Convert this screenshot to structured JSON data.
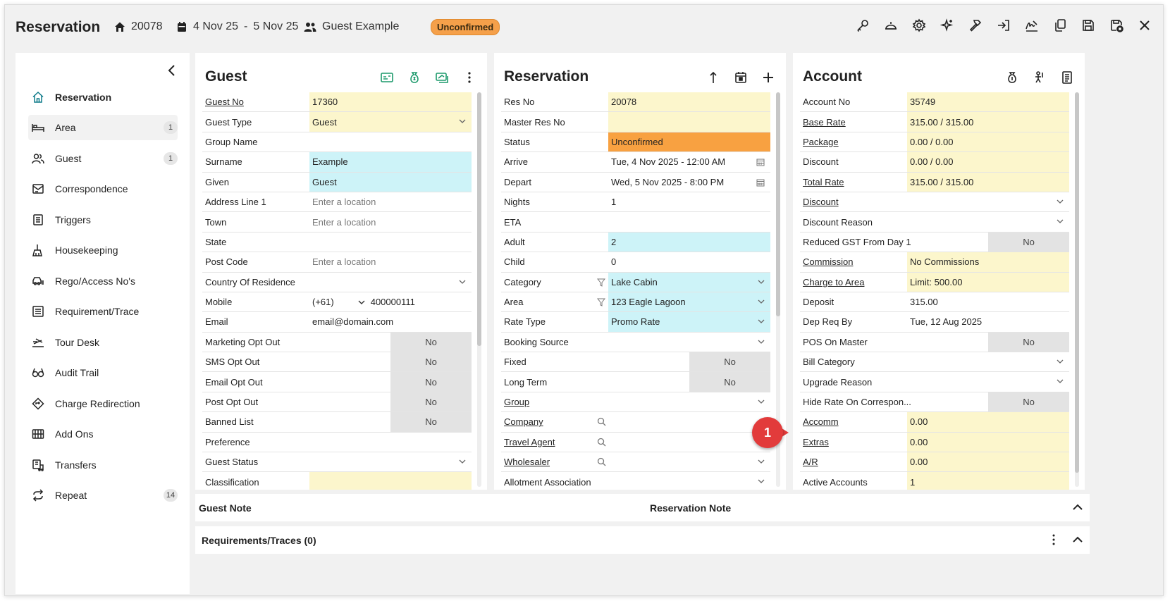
{
  "header": {
    "title": "Reservation",
    "res_no": "20078",
    "date_from": "4 Nov 25",
    "date_sep": "-",
    "date_to": "5 Nov 25",
    "guest_name": "Guest Example",
    "status_badge": "Unconfirmed",
    "toolbar_icons": [
      "key-icon",
      "bell-service-icon",
      "gear-icon",
      "sparkle-icon",
      "hammer-icon",
      "check-in-icon",
      "signature-icon",
      "copy-icon",
      "save-icon",
      "save-close-icon",
      "close-icon"
    ]
  },
  "sidebar": {
    "items": [
      {
        "label": "Reservation",
        "icon": "home-icon",
        "count": ""
      },
      {
        "label": "Area",
        "icon": "bed-icon",
        "count": "1"
      },
      {
        "label": "Guest",
        "icon": "users-icon",
        "count": "1"
      },
      {
        "label": "Correspondence",
        "icon": "correspondence-icon",
        "count": ""
      },
      {
        "label": "Triggers",
        "icon": "triggers-icon",
        "count": ""
      },
      {
        "label": "Housekeeping",
        "icon": "housekeeping-icon",
        "count": ""
      },
      {
        "label": "Rego/Access No's",
        "icon": "car-icon",
        "count": ""
      },
      {
        "label": "Requirement/Trace",
        "icon": "list-icon",
        "count": ""
      },
      {
        "label": "Tour Desk",
        "icon": "tour-icon",
        "count": ""
      },
      {
        "label": "Audit Trail",
        "icon": "glasses-icon",
        "count": ""
      },
      {
        "label": "Charge Redirection",
        "icon": "redirect-icon",
        "count": ""
      },
      {
        "label": "Add Ons",
        "icon": "addons-icon",
        "count": ""
      },
      {
        "label": "Transfers",
        "icon": "transfers-icon",
        "count": ""
      },
      {
        "label": "Repeat",
        "icon": "repeat-icon",
        "count": "14"
      }
    ]
  },
  "guest_panel": {
    "title": "Guest",
    "rows": [
      {
        "label": "Guest No",
        "link": true,
        "value": "17360",
        "bg": "yellow"
      },
      {
        "label": "Guest Type",
        "link": false,
        "value": "Guest",
        "bg": "yellow",
        "dropdown": true
      },
      {
        "label": "Group Name",
        "link": false,
        "value": "",
        "bg": ""
      },
      {
        "label": "Surname",
        "link": false,
        "value": "Example",
        "bg": "cyan"
      },
      {
        "label": "Given",
        "link": false,
        "value": "Guest",
        "bg": "cyan"
      },
      {
        "label": "Address Line 1",
        "link": false,
        "placeholder": "Enter a location",
        "bg": ""
      },
      {
        "label": "Town",
        "link": false,
        "placeholder": "Enter a location",
        "bg": ""
      },
      {
        "label": "State",
        "link": false,
        "value": "",
        "bg": ""
      },
      {
        "label": "Post Code",
        "link": false,
        "placeholder": "Enter a location",
        "bg": ""
      },
      {
        "label": "Country Of Residence",
        "link": false,
        "value": "",
        "bg": "",
        "dropdown": true
      },
      {
        "label": "Mobile",
        "link": false,
        "mobile_code": "(+61)",
        "value": "400000111",
        "bg": ""
      },
      {
        "label": "Email",
        "link": false,
        "value": "email@domain.com",
        "bg": ""
      },
      {
        "label": "Marketing Opt Out",
        "link": false,
        "toggle": "No",
        "bg": ""
      },
      {
        "label": "SMS Opt Out",
        "link": false,
        "toggle": "No",
        "bg": ""
      },
      {
        "label": "Email Opt Out",
        "link": false,
        "toggle": "No",
        "bg": ""
      },
      {
        "label": "Post Opt Out",
        "link": false,
        "toggle": "No",
        "bg": ""
      },
      {
        "label": "Banned List",
        "link": false,
        "toggle": "No",
        "bg": ""
      },
      {
        "label": "Preference",
        "link": false,
        "value": "",
        "bg": ""
      },
      {
        "label": "Guest Status",
        "link": false,
        "value": "",
        "bg": "",
        "dropdown": true
      },
      {
        "label": "Classification",
        "link": false,
        "value": "",
        "bg": "yellow"
      }
    ]
  },
  "reservation_panel": {
    "title": "Reservation",
    "rows": [
      {
        "label": "Res No",
        "link": false,
        "value": "20078",
        "bg": "yellow"
      },
      {
        "label": "Master Res No",
        "link": false,
        "value": "",
        "bg": "yellow"
      },
      {
        "label": "Status",
        "link": false,
        "value": "Unconfirmed",
        "bg": "orange"
      },
      {
        "label": "Arrive",
        "link": false,
        "value": "Tue, 4 Nov 2025 - 12:00 AM",
        "bg": "",
        "calendar": true
      },
      {
        "label": "Depart",
        "link": false,
        "value": "Wed, 5 Nov 2025 - 8:00 PM",
        "bg": "",
        "calendar": true
      },
      {
        "label": "Nights",
        "link": false,
        "value": "1",
        "bg": ""
      },
      {
        "label": "ETA",
        "link": false,
        "value": "",
        "bg": ""
      },
      {
        "label": "Adult",
        "link": false,
        "value": "2",
        "bg": "cyan"
      },
      {
        "label": "Child",
        "link": false,
        "value": "0",
        "bg": ""
      },
      {
        "label": "Category",
        "link": false,
        "value": "Lake Cabin",
        "bg": "cyan",
        "dropdown": true,
        "filter": true
      },
      {
        "label": "Area",
        "link": false,
        "value": "123 Eagle Lagoon",
        "bg": "cyan",
        "dropdown": true,
        "filter": true
      },
      {
        "label": "Rate Type",
        "link": false,
        "value": "Promo Rate",
        "bg": "cyan",
        "dropdown": true
      },
      {
        "label": "Booking Source",
        "link": false,
        "value": "",
        "bg": "",
        "dropdown": true
      },
      {
        "label": "Fixed",
        "link": false,
        "toggle": "No",
        "bg": ""
      },
      {
        "label": "Long Term",
        "link": false,
        "toggle": "No",
        "bg": ""
      },
      {
        "label": "Group",
        "link": true,
        "value": "",
        "bg": "",
        "dropdown": true
      },
      {
        "label": "Company",
        "link": true,
        "value": "",
        "bg": "",
        "search": true
      },
      {
        "label": "Travel Agent",
        "link": true,
        "value": "",
        "bg": "",
        "search": true
      },
      {
        "label": "Wholesaler",
        "link": true,
        "value": "",
        "bg": "",
        "search": true,
        "dropdown": true
      },
      {
        "label": "Allotment Association",
        "link": false,
        "value": "",
        "bg": "",
        "dropdown": true
      }
    ]
  },
  "account_panel": {
    "title": "Account",
    "rows": [
      {
        "label": "Account No",
        "link": false,
        "value": "35749",
        "bg": "yellow"
      },
      {
        "label": "Base Rate",
        "link": true,
        "value": "315.00 / 315.00",
        "bg": "yellow"
      },
      {
        "label": "Package",
        "link": true,
        "value": "0.00 / 0.00",
        "bg": "yellow"
      },
      {
        "label": "Discount",
        "link": false,
        "value": "0.00 / 0.00",
        "bg": "yellow"
      },
      {
        "label": "Total Rate",
        "link": true,
        "value": "315.00 / 315.00",
        "bg": "yellow"
      },
      {
        "label": "Discount",
        "link": true,
        "value": "",
        "bg": "",
        "dropdown": true
      },
      {
        "label": "Discount Reason",
        "link": false,
        "value": "",
        "bg": "",
        "dropdown": true
      },
      {
        "label": "Reduced GST From Day 1",
        "link": false,
        "toggle": "No",
        "bg": ""
      },
      {
        "label": "Commission",
        "link": true,
        "value": "No Commissions",
        "bg": "yellow"
      },
      {
        "label": "Charge to Area",
        "link": true,
        "value": "Limit: 500.00",
        "bg": "yellow"
      },
      {
        "label": "Deposit",
        "link": false,
        "value": "315.00",
        "bg": ""
      },
      {
        "label": "Dep Req By",
        "link": false,
        "value": "Tue, 12 Aug 2025",
        "bg": ""
      },
      {
        "label": "POS On Master",
        "link": false,
        "toggle": "No",
        "bg": ""
      },
      {
        "label": "Bill Category",
        "link": false,
        "value": "",
        "bg": "",
        "dropdown": true
      },
      {
        "label": "Upgrade Reason",
        "link": false,
        "value": "",
        "bg": "",
        "dropdown": true
      },
      {
        "label": "Hide Rate On Correspon...",
        "link": false,
        "toggle": "No",
        "bg": ""
      },
      {
        "label": "Accomm",
        "link": true,
        "value": "0.00",
        "bg": "yellow"
      },
      {
        "label": "Extras",
        "link": true,
        "value": "0.00",
        "bg": "yellow"
      },
      {
        "label": "A/R",
        "link": true,
        "value": "0.00",
        "bg": "yellow"
      },
      {
        "label": "Active Accounts",
        "link": false,
        "value": "1",
        "bg": "yellow"
      }
    ]
  },
  "notes": {
    "guest_note": "Guest Note",
    "reservation_note": "Reservation Note",
    "requirements": "Requirements/Traces (0)"
  },
  "callout": {
    "number": "1"
  },
  "colors": {
    "accent": "#0f7b8a",
    "status_orange": "#f8a141",
    "yellow_field": "#fcf6cc",
    "cyan_field": "#cdf3f8",
    "callout_red": "#e23b3b"
  }
}
